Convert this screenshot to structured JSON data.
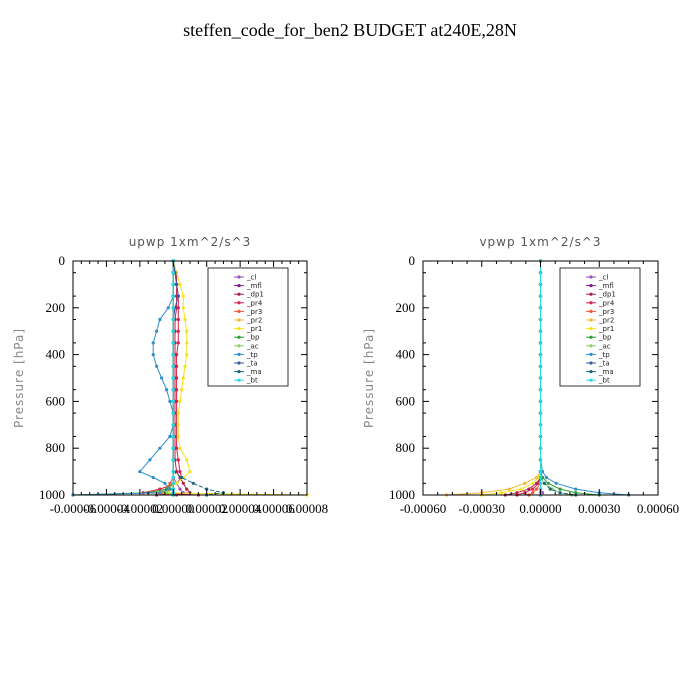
{
  "figure_title": "steffen_code_for_ben2  BUDGET at240E,28N",
  "chart_data": [
    {
      "type": "line",
      "title": "upwp   1xm^2/s^3",
      "ylabel": "Pressure  [hPa]",
      "ylim": [
        1000,
        0
      ],
      "yticks": [
        "0",
        "200",
        "400",
        "600",
        "800",
        "1000"
      ],
      "xticks": [
        "-0.00006",
        "-0.00004",
        "-0.00002",
        "0.00000",
        "0.00002",
        "0.00004",
        "0.00006",
        "0.00008"
      ],
      "xlim": [
        -6e-05,
        8e-05
      ],
      "legend_placement": "top-right",
      "y": [
        0,
        50,
        100,
        150,
        200,
        250,
        300,
        350,
        400,
        450,
        500,
        550,
        600,
        650,
        700,
        750,
        800,
        850,
        900,
        925,
        950,
        975,
        990,
        1000
      ],
      "series": [
        {
          "name": "_cl",
          "color": "#9b4fc4",
          "values": [
            0,
            0,
            0,
            0,
            0,
            0,
            0,
            0,
            0,
            0,
            0,
            0,
            0,
            0,
            0,
            0,
            0,
            0,
            0,
            0,
            2e-06,
            4e-06,
            6e-06,
            2e-06
          ]
        },
        {
          "name": "_mfl",
          "color": "#7a1a8c",
          "values": [
            0,
            0,
            0,
            0,
            0,
            0,
            0,
            0,
            0,
            0,
            0,
            0,
            0,
            0,
            0,
            0,
            0,
            0,
            0,
            0,
            0,
            0,
            0,
            0
          ]
        },
        {
          "name": "_dp1",
          "color": "#b3204a",
          "values": [
            0,
            2e-06,
            2e-06,
            2e-06,
            2e-06,
            1e-06,
            1e-06,
            1e-06,
            1e-06,
            1e-06,
            1e-06,
            1e-06,
            1e-06,
            1e-06,
            1e-06,
            1e-06,
            1e-06,
            1e-06,
            2e-06,
            4e-06,
            6e-06,
            8e-06,
            1e-05,
            -1e-05
          ]
        },
        {
          "name": "_pr4",
          "color": "#d8204a",
          "values": [
            0,
            1e-06,
            2e-06,
            3e-06,
            3e-06,
            3e-06,
            3e-06,
            3e-06,
            2e-06,
            2e-06,
            2e-06,
            2e-06,
            2e-06,
            2e-06,
            2e-06,
            2e-06,
            2e-06,
            3e-06,
            4e-06,
            5e-06,
            2e-06,
            -8e-06,
            -1.8e-05,
            1.5e-05
          ]
        },
        {
          "name": "_pr3",
          "color": "#f05a3a",
          "values": [
            0,
            0,
            0,
            0,
            0,
            0,
            0,
            0,
            0,
            0,
            0,
            0,
            0,
            0,
            0,
            0,
            0,
            0,
            0,
            0,
            -2e-06,
            -4e-06,
            -6e-06,
            0
          ]
        },
        {
          "name": "_pr2",
          "color": "#f7b733",
          "values": [
            0,
            0,
            0,
            0,
            0,
            0,
            0,
            0,
            0,
            0,
            0,
            0,
            0,
            0,
            0,
            0,
            0,
            0,
            0,
            0,
            0,
            -2e-06,
            -4e-06,
            0
          ]
        },
        {
          "name": "_pr1",
          "color": "#f5e21a",
          "values": [
            0,
            2e-06,
            4e-06,
            6e-06,
            6e-06,
            7e-06,
            8e-06,
            8e-06,
            8e-06,
            7e-06,
            6e-06,
            5e-06,
            4e-06,
            3e-06,
            3e-06,
            3e-06,
            4e-06,
            8e-06,
            1e-05,
            6e-06,
            2e-06,
            -4e-06,
            -1e-05,
            8e-05
          ]
        },
        {
          "name": "_bp",
          "color": "#2a9d3a",
          "values": [
            0,
            0,
            0,
            0,
            0,
            0,
            0,
            0,
            0,
            0,
            0,
            0,
            0,
            0,
            0,
            0,
            0,
            0,
            0,
            0,
            0,
            -4e-06,
            -1.5e-05,
            -6e-05
          ]
        },
        {
          "name": "_ac",
          "color": "#8ad45a",
          "values": [
            0,
            0,
            0,
            0,
            0,
            0,
            0,
            0,
            0,
            0,
            0,
            0,
            0,
            0,
            0,
            0,
            0,
            0,
            0,
            0,
            0,
            0,
            -4e-06,
            0
          ]
        },
        {
          "name": "_tp",
          "color": "#2f8fc9",
          "values": [
            0,
            0,
            0,
            0,
            -3e-06,
            -8e-06,
            -1e-05,
            -1.2e-05,
            -1.2e-05,
            -1e-05,
            -7e-06,
            -4e-06,
            -2e-06,
            0,
            0,
            -2e-06,
            -8e-06,
            -1.4e-05,
            -2e-05,
            -1.2e-05,
            -5e-06,
            -2e-06,
            -8e-06,
            -6e-05
          ]
        },
        {
          "name": "_ta",
          "color": "#3a5aa0",
          "values": [
            0,
            1e-06,
            2e-06,
            3e-06,
            1e-06,
            0,
            0,
            0,
            0,
            0,
            0,
            0,
            0,
            0,
            0,
            0,
            0,
            0,
            0,
            0,
            0,
            0,
            0,
            0
          ]
        },
        {
          "name": "_ma",
          "color": "#1a6a7a",
          "values": [
            0,
            0,
            0,
            0,
            0,
            0,
            0,
            0,
            0,
            0,
            0,
            0,
            0,
            0,
            0,
            0,
            0,
            0,
            0,
            5e-06,
            1.2e-05,
            2e-05,
            3e-05,
            2e-05
          ]
        },
        {
          "name": "_bt",
          "color": "#26d9e6",
          "values": [
            0,
            0,
            0,
            0,
            0,
            0,
            0,
            0,
            0,
            0,
            0,
            0,
            0,
            0,
            0,
            0,
            0,
            0,
            0,
            0,
            0,
            0,
            0,
            0
          ]
        }
      ]
    },
    {
      "type": "line",
      "title": "vpwp   1xm^2/s^3",
      "ylabel": "Pressure  [hPa]",
      "ylim": [
        1000,
        0
      ],
      "yticks": [
        "0",
        "200",
        "400",
        "600",
        "800",
        "1000"
      ],
      "xticks": [
        "-0.00060",
        "-0.00030",
        "0.00000",
        "0.00030",
        "0.00060"
      ],
      "xlim": [
        -0.0006,
        0.0006
      ],
      "legend_placement": "top-right",
      "y": [
        0,
        50,
        100,
        150,
        200,
        250,
        300,
        350,
        400,
        450,
        500,
        550,
        600,
        650,
        700,
        750,
        800,
        850,
        900,
        925,
        950,
        975,
        990,
        1000
      ],
      "series": [
        {
          "name": "_cl",
          "color": "#9b4fc4",
          "values": [
            0,
            0,
            0,
            0,
            0,
            0,
            0,
            0,
            0,
            0,
            0,
            0,
            0,
            0,
            0,
            0,
            0,
            0,
            0,
            0,
            0,
            0,
            1e-05,
            0
          ]
        },
        {
          "name": "_mfl",
          "color": "#7a1a8c",
          "values": [
            0,
            0,
            0,
            0,
            0,
            0,
            0,
            0,
            0,
            0,
            0,
            0,
            0,
            0,
            0,
            0,
            0,
            0,
            0,
            0,
            0,
            0,
            0,
            0
          ]
        },
        {
          "name": "_dp1",
          "color": "#b3204a",
          "values": [
            0,
            0,
            0,
            0,
            0,
            0,
            0,
            0,
            0,
            0,
            0,
            0,
            0,
            0,
            0,
            0,
            0,
            0,
            0,
            0,
            -2e-05,
            -6e-05,
            -0.00012,
            -0.00018
          ]
        },
        {
          "name": "_pr4",
          "color": "#d8204a",
          "values": [
            0,
            0,
            0,
            0,
            0,
            0,
            0,
            0,
            0,
            0,
            0,
            0,
            0,
            0,
            0,
            0,
            0,
            0,
            0,
            0,
            -1e-05,
            -4e-05,
            -8e-05,
            -0.00012
          ]
        },
        {
          "name": "_pr3",
          "color": "#f05a3a",
          "values": [
            0,
            0,
            0,
            0,
            0,
            0,
            0,
            0,
            0,
            0,
            0,
            0,
            0,
            0,
            0,
            0,
            0,
            0,
            0,
            0,
            0,
            -2e-05,
            -4e-05,
            -6e-05
          ]
        },
        {
          "name": "_pr2",
          "color": "#f7b733",
          "values": [
            0,
            0,
            0,
            0,
            0,
            0,
            0,
            0,
            0,
            0,
            0,
            0,
            0,
            0,
            0,
            0,
            0,
            0,
            0,
            -2e-05,
            -8e-05,
            -0.00016,
            -0.0003,
            -0.00048
          ]
        },
        {
          "name": "_pr1",
          "color": "#f5e21a",
          "values": [
            0,
            0,
            0,
            0,
            0,
            0,
            0,
            0,
            0,
            0,
            0,
            0,
            0,
            0,
            0,
            0,
            0,
            0,
            0,
            -1e-05,
            -4e-05,
            -0.0001,
            -0.0002,
            -0.0003
          ]
        },
        {
          "name": "_bp",
          "color": "#2a9d3a",
          "values": [
            0,
            0,
            0,
            0,
            0,
            0,
            0,
            0,
            0,
            0,
            0,
            0,
            0,
            0,
            0,
            0,
            0,
            0,
            0,
            1e-05,
            4e-05,
            0.0001,
            0.00018,
            0.0003
          ]
        },
        {
          "name": "_ac",
          "color": "#8ad45a",
          "values": [
            0,
            0,
            0,
            0,
            0,
            0,
            0,
            0,
            0,
            0,
            0,
            0,
            0,
            0,
            0,
            0,
            0,
            0,
            0,
            0,
            2e-05,
            6e-05,
            0.0001,
            0.00016
          ]
        },
        {
          "name": "_tp",
          "color": "#2f8fc9",
          "values": [
            0,
            0,
            0,
            0,
            0,
            0,
            0,
            0,
            0,
            0,
            0,
            0,
            0,
            0,
            0,
            0,
            0,
            0,
            1e-05,
            3e-05,
            8e-05,
            0.00018,
            0.0003,
            0.00045
          ]
        },
        {
          "name": "_ta",
          "color": "#3a5aa0",
          "values": [
            0,
            0,
            0,
            0,
            0,
            0,
            0,
            0,
            0,
            0,
            0,
            0,
            0,
            0,
            0,
            0,
            0,
            0,
            0,
            0,
            0,
            0,
            0,
            0
          ]
        },
        {
          "name": "_ma",
          "color": "#1a6a7a",
          "values": [
            0,
            0,
            0,
            0,
            0,
            0,
            0,
            0,
            0,
            0,
            0,
            0,
            0,
            0,
            0,
            0,
            0,
            0,
            0,
            0,
            2e-05,
            5e-05,
            0.0001,
            0.00018
          ]
        },
        {
          "name": "_bt",
          "color": "#26d9e6",
          "values": [
            0,
            0,
            0,
            0,
            0,
            0,
            0,
            0,
            0,
            0,
            0,
            0,
            0,
            0,
            0,
            0,
            0,
            0,
            0,
            0,
            0,
            0,
            0,
            0
          ]
        }
      ]
    }
  ]
}
